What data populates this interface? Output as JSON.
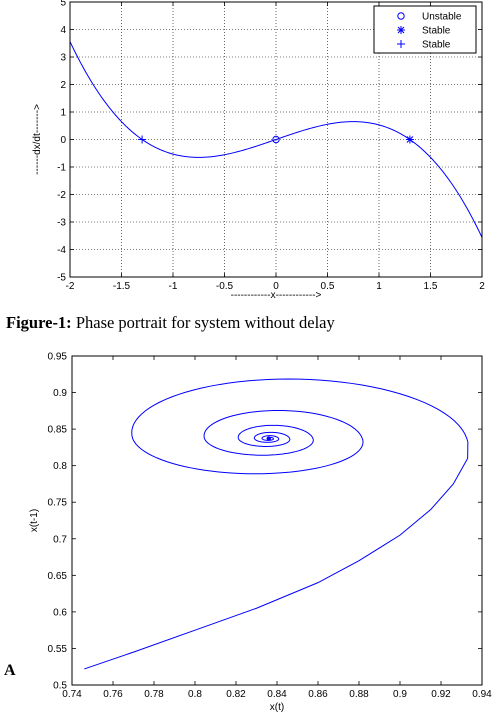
{
  "caption": {
    "label": "Figure-1:",
    "text": " Phase portrait for system without delay"
  },
  "panel_letter": "A",
  "chart_data": [
    {
      "type": "line",
      "xlabel": "------------x------------>",
      "ylabel": "------dx/dt------->",
      "xlim": [
        -2,
        2
      ],
      "ylim": [
        -5,
        5
      ],
      "x_ticks": [
        -2,
        -1.5,
        -1,
        -0.5,
        0,
        0.5,
        1,
        1.5,
        2
      ],
      "y_ticks": [
        -5,
        -4,
        -3,
        -2,
        -1,
        0,
        1,
        2,
        3,
        4,
        5
      ],
      "grid": true,
      "grid_style": "dotted",
      "line_color": "#0000ff",
      "series": [
        {
          "function": "dx/dt = 1.3x - 0.77x^3",
          "x_range": [
            -2,
            2
          ]
        }
      ],
      "markers": [
        {
          "name": "Unstable",
          "symbol": "circle",
          "x": 0,
          "y": 0
        },
        {
          "name": "Stable",
          "symbol": "star",
          "x": 1.3,
          "y": 0
        },
        {
          "name": "Stable",
          "symbol": "plus",
          "x": -1.3,
          "y": 0
        }
      ],
      "legend": {
        "position": "top-right",
        "entries": [
          {
            "symbol": "circle",
            "label": "Unstable"
          },
          {
            "symbol": "star",
            "label": "Stable"
          },
          {
            "symbol": "plus",
            "label": "Stable"
          }
        ]
      }
    },
    {
      "type": "line",
      "xlabel": "x(t)",
      "ylabel": "x(t-1)",
      "xlim": [
        0.74,
        0.94
      ],
      "ylim": [
        0.5,
        0.95
      ],
      "x_ticks": [
        0.74,
        0.76,
        0.78,
        0.8,
        0.82,
        0.84,
        0.86,
        0.88,
        0.9,
        0.92,
        0.94
      ],
      "y_ticks": [
        0.5,
        0.55,
        0.6,
        0.65,
        0.7,
        0.75,
        0.8,
        0.85,
        0.9,
        0.95
      ],
      "grid": false,
      "line_color": "#0000ff",
      "trajectory": "inward spiral",
      "start_point": [
        0.746,
        0.522
      ],
      "equilibrium": [
        0.836,
        0.837
      ]
    }
  ]
}
